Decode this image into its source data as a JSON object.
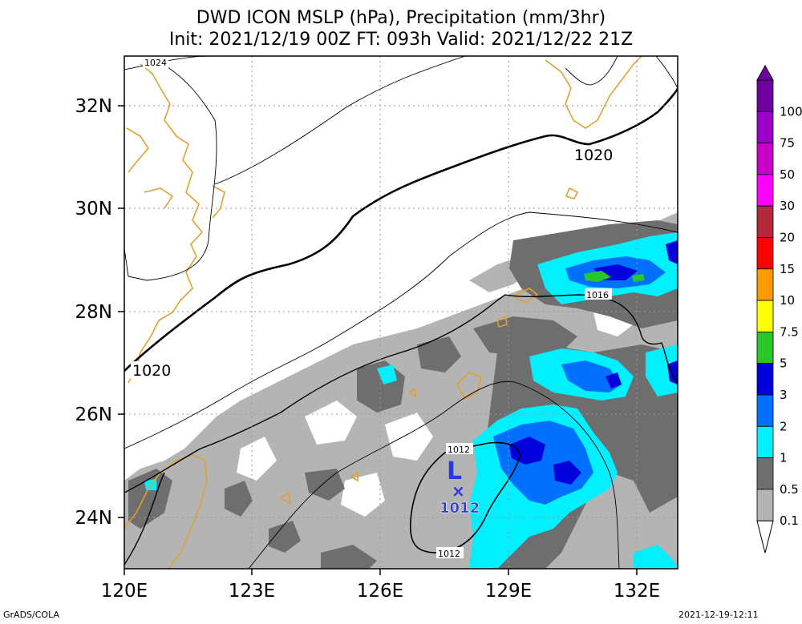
{
  "header": {
    "title_line1": "DWD ICON MSLP (hPa), Precipitation (mm/3hr)",
    "title_line2": "Init: 2021/12/19 00Z  FT: 093h  Valid: 2021/12/22 21Z"
  },
  "map": {
    "lon_labels": [
      "120E",
      "123E",
      "126E",
      "129E",
      "132E"
    ],
    "lat_labels": [
      "32N",
      "30N",
      "28N",
      "26N",
      "24N"
    ],
    "isobar_labels": {
      "i1024": "1024",
      "i1020_ne": "1020",
      "i1020_w": "1020",
      "i1016": "1016",
      "i1012_top": "1012",
      "i1012_bot": "1012"
    },
    "low": {
      "symbol": "L",
      "marker": "×",
      "pressure": "1012"
    }
  },
  "colorbar": {
    "labels": [
      "100",
      "75",
      "50",
      "30",
      "20",
      "15",
      "10",
      "7.5",
      "5",
      "3",
      "2",
      "1",
      "0.5",
      "0.1"
    ],
    "colors": [
      "#6e00a0",
      "#9a00c8",
      "#c800c8",
      "#ff00ff",
      "#b4283c",
      "#ff0000",
      "#ff9b00",
      "#ffff00",
      "#28c828",
      "#0000dc",
      "#0070ff",
      "#00f0ff",
      "#6e6e6e",
      "#b4b4b4"
    ]
  },
  "footer": {
    "left": "GrADS/COLA",
    "right": "2021-12-19-12:11"
  }
}
